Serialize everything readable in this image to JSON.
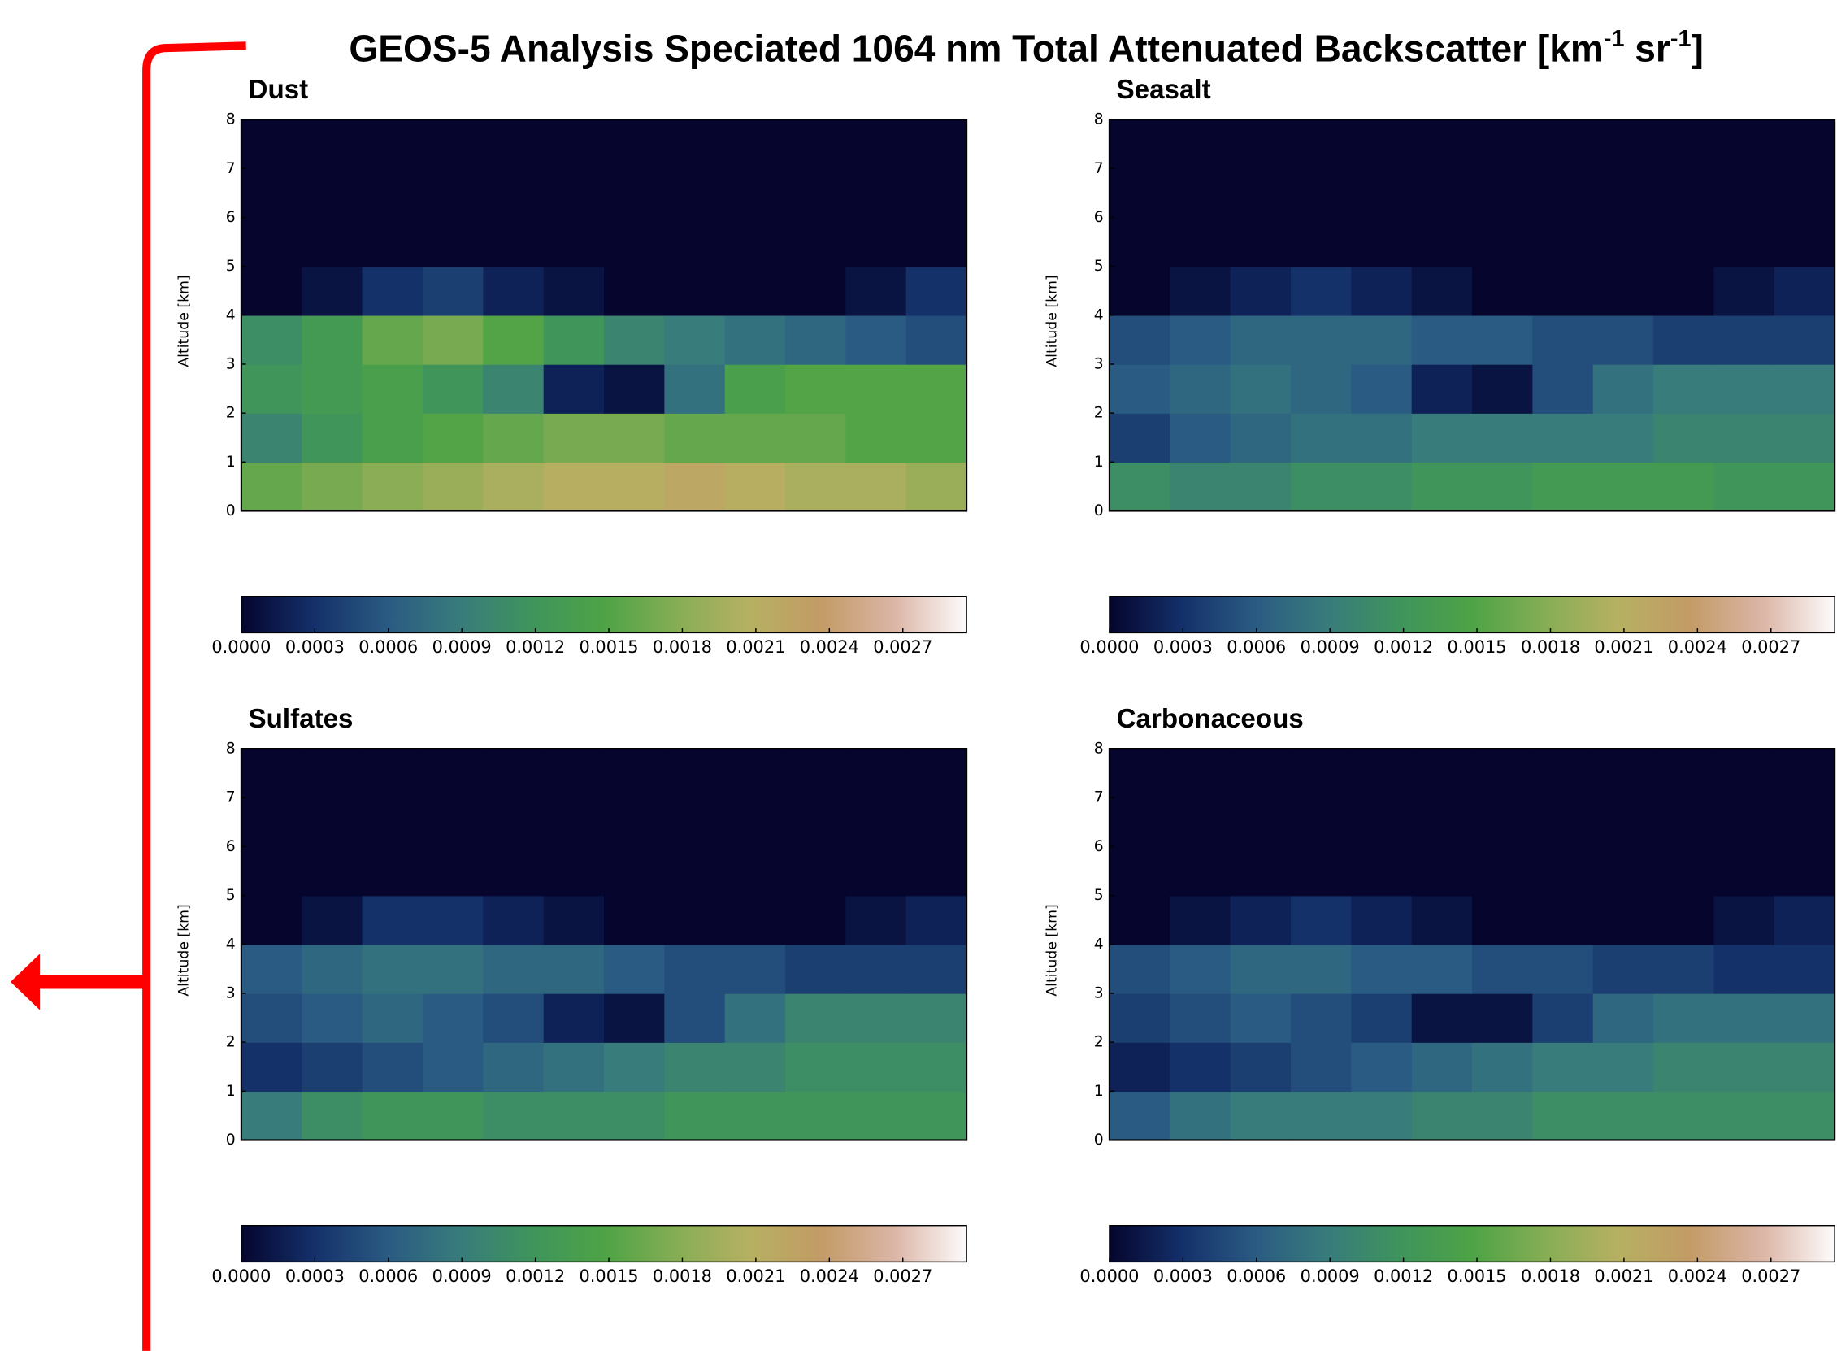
{
  "figure": {
    "title": [
      "GEOS-5 Analysis Speciated 1064 nm Total Attenuated Backscatter [km",
      "-1",
      " sr",
      "-1",
      "]"
    ]
  },
  "chart_data": [
    {
      "type": "heatmap",
      "title": "Dust",
      "ylabel": "Altitude [km]",
      "ylim": [
        0,
        8
      ],
      "yticks": [
        0,
        1,
        2,
        3,
        4,
        5,
        6,
        7,
        8
      ],
      "z": [
        [
          0.0016,
          0.0017,
          0.0018,
          0.0019,
          0.002,
          0.0021,
          0.0021,
          0.0022,
          0.0021,
          0.002,
          0.002,
          0.0019
        ],
        [
          0.001,
          0.0012,
          0.0014,
          0.0015,
          0.0016,
          0.0017,
          0.0017,
          0.0016,
          0.0016,
          0.0016,
          0.0015,
          0.0015
        ],
        [
          0.0012,
          0.0013,
          0.0014,
          0.0012,
          0.001,
          0.0002,
          0.0001,
          0.0008,
          0.0014,
          0.0015,
          0.0015,
          0.0015
        ],
        [
          0.0011,
          0.0013,
          0.0016,
          0.0017,
          0.0015,
          0.0012,
          0.001,
          0.0009,
          0.0008,
          0.0007,
          0.0006,
          0.0005
        ],
        [
          0,
          0.0001,
          0.0003,
          0.0004,
          0.0002,
          0.0001,
          0,
          0,
          0,
          0,
          0.0001,
          0.0003
        ],
        [
          0,
          0,
          0,
          0,
          0,
          0,
          0,
          0,
          0,
          0,
          0,
          0
        ],
        [
          0,
          0,
          0,
          0,
          0,
          0,
          0,
          0,
          0,
          0,
          0,
          0
        ],
        [
          0,
          0,
          0,
          0,
          0,
          0,
          0,
          0,
          0,
          0,
          0,
          0
        ]
      ],
      "colorbar": {
        "clim": [
          0,
          0.00296
        ],
        "colormap": [
          "#05052e",
          "#14306a",
          "#2a5a82",
          "#387b7c",
          "#3f945c",
          "#4ea346",
          "#86ad55",
          "#b6b062",
          "#c39b66",
          "#dbb5a6",
          "#fdfbfb"
        ],
        "ticks": [
          {
            "value": 0,
            "label": "0.0000"
          },
          {
            "value": 0.0003,
            "label": "0.0003"
          },
          {
            "value": 0.0006,
            "label": "0.0006"
          },
          {
            "value": 0.0009,
            "label": "0.0009"
          },
          {
            "value": 0.0012,
            "label": "0.0012"
          },
          {
            "value": 0.0015,
            "label": "0.0015"
          },
          {
            "value": 0.0018,
            "label": "0.0018"
          },
          {
            "value": 0.0021,
            "label": "0.0021"
          },
          {
            "value": 0.0024,
            "label": "0.0024"
          },
          {
            "value": 0.0027,
            "label": "0.0027"
          }
        ]
      }
    },
    {
      "type": "heatmap",
      "title": "Seasalt",
      "ylabel": "Altitude [km]",
      "ylim": [
        0,
        8
      ],
      "yticks": [
        0,
        1,
        2,
        3,
        4,
        5,
        6,
        7,
        8
      ],
      "z": [
        [
          0.0011,
          0.001,
          0.001,
          0.0011,
          0.0011,
          0.0012,
          0.0012,
          0.0013,
          0.0013,
          0.0013,
          0.0012,
          0.0012
        ],
        [
          0.0004,
          0.0006,
          0.0007,
          0.0008,
          0.0008,
          0.0009,
          0.0009,
          0.0009,
          0.0009,
          0.001,
          0.001,
          0.001
        ],
        [
          0.0006,
          0.0007,
          0.0008,
          0.0007,
          0.0006,
          0.0002,
          0.0001,
          0.0005,
          0.0008,
          0.0009,
          0.0009,
          0.0009
        ],
        [
          0.0005,
          0.0006,
          0.0007,
          0.0007,
          0.0007,
          0.0006,
          0.0006,
          0.0005,
          0.0005,
          0.0004,
          0.0004,
          0.0004
        ],
        [
          0,
          0.0001,
          0.0002,
          0.0003,
          0.0002,
          0.0001,
          0,
          0,
          0,
          0,
          0.0001,
          0.0002
        ],
        [
          0,
          0,
          0,
          0,
          0,
          0,
          0,
          0,
          0,
          0,
          0,
          0
        ],
        [
          0,
          0,
          0,
          0,
          0,
          0,
          0,
          0,
          0,
          0,
          0,
          0
        ],
        [
          0,
          0,
          0,
          0,
          0,
          0,
          0,
          0,
          0,
          0,
          0,
          0
        ]
      ],
      "colorbar": {
        "clim": [
          0,
          0.00296
        ],
        "colormap": [
          "#05052e",
          "#14306a",
          "#2a5a82",
          "#387b7c",
          "#3f945c",
          "#4ea346",
          "#86ad55",
          "#b6b062",
          "#c39b66",
          "#dbb5a6",
          "#fdfbfb"
        ],
        "ticks": [
          {
            "value": 0,
            "label": "0.0000"
          },
          {
            "value": 0.0003,
            "label": "0.0003"
          },
          {
            "value": 0.0006,
            "label": "0.0006"
          },
          {
            "value": 0.0009,
            "label": "0.0009"
          },
          {
            "value": 0.0012,
            "label": "0.0012"
          },
          {
            "value": 0.0015,
            "label": "0.0015"
          },
          {
            "value": 0.0018,
            "label": "0.0018"
          },
          {
            "value": 0.0021,
            "label": "0.0021"
          },
          {
            "value": 0.0024,
            "label": "0.0024"
          },
          {
            "value": 0.0027,
            "label": "0.0027"
          }
        ]
      }
    },
    {
      "type": "heatmap",
      "title": "Sulfates",
      "ylabel": "Altitude [km]",
      "ylim": [
        0,
        8
      ],
      "yticks": [
        0,
        1,
        2,
        3,
        4,
        5,
        6,
        7,
        8
      ],
      "z": [
        [
          0.0009,
          0.0011,
          0.0012,
          0.0012,
          0.0011,
          0.0011,
          0.0011,
          0.0012,
          0.0012,
          0.0012,
          0.0012,
          0.0012
        ],
        [
          0.0003,
          0.0004,
          0.0005,
          0.0006,
          0.0007,
          0.0008,
          0.0009,
          0.001,
          0.001,
          0.0011,
          0.0011,
          0.0011
        ],
        [
          0.0005,
          0.0006,
          0.0007,
          0.0006,
          0.0005,
          0.0002,
          0.0001,
          0.0005,
          0.0008,
          0.001,
          0.001,
          0.001
        ],
        [
          0.0006,
          0.0007,
          0.0008,
          0.0008,
          0.0007,
          0.0007,
          0.0006,
          0.0005,
          0.0005,
          0.0004,
          0.0004,
          0.0004
        ],
        [
          0,
          0.0001,
          0.0003,
          0.0003,
          0.0002,
          0.0001,
          0,
          0,
          0,
          0,
          0.0001,
          0.0002
        ],
        [
          0,
          0,
          0,
          0,
          0,
          0,
          0,
          0,
          0,
          0,
          0,
          0
        ],
        [
          0,
          0,
          0,
          0,
          0,
          0,
          0,
          0,
          0,
          0,
          0,
          0
        ],
        [
          0,
          0,
          0,
          0,
          0,
          0,
          0,
          0,
          0,
          0,
          0,
          0
        ]
      ],
      "colorbar": {
        "clim": [
          0,
          0.00296
        ],
        "colormap": [
          "#05052e",
          "#14306a",
          "#2a5a82",
          "#387b7c",
          "#3f945c",
          "#4ea346",
          "#86ad55",
          "#b6b062",
          "#c39b66",
          "#dbb5a6",
          "#fdfbfb"
        ],
        "ticks": [
          {
            "value": 0,
            "label": "0.0000"
          },
          {
            "value": 0.0003,
            "label": "0.0003"
          },
          {
            "value": 0.0006,
            "label": "0.0006"
          },
          {
            "value": 0.0009,
            "label": "0.0009"
          },
          {
            "value": 0.0012,
            "label": "0.0012"
          },
          {
            "value": 0.0015,
            "label": "0.0015"
          },
          {
            "value": 0.0018,
            "label": "0.0018"
          },
          {
            "value": 0.0021,
            "label": "0.0021"
          },
          {
            "value": 0.0024,
            "label": "0.0024"
          },
          {
            "value": 0.0027,
            "label": "0.0027"
          }
        ]
      }
    },
    {
      "type": "heatmap",
      "title": "Carbonaceous",
      "ylabel": "Altitude [km]",
      "ylim": [
        0,
        8
      ],
      "yticks": [
        0,
        1,
        2,
        3,
        4,
        5,
        6,
        7,
        8
      ],
      "z": [
        [
          0.0006,
          0.0008,
          0.0009,
          0.0009,
          0.0009,
          0.001,
          0.001,
          0.0011,
          0.0011,
          0.0011,
          0.0011,
          0.0011
        ],
        [
          0.0002,
          0.0003,
          0.0004,
          0.0005,
          0.0006,
          0.0007,
          0.0008,
          0.0009,
          0.0009,
          0.001,
          0.001,
          0.001
        ],
        [
          0.0004,
          0.0005,
          0.0006,
          0.0005,
          0.0004,
          0.0001,
          0.0001,
          0.0004,
          0.0007,
          0.0008,
          0.0008,
          0.0008
        ],
        [
          0.0005,
          0.0006,
          0.0007,
          0.0007,
          0.0006,
          0.0006,
          0.0005,
          0.0005,
          0.0004,
          0.0004,
          0.0003,
          0.0003
        ],
        [
          0,
          0.0001,
          0.0002,
          0.0003,
          0.0002,
          0.0001,
          0,
          0,
          0,
          0,
          0.0001,
          0.0002
        ],
        [
          0,
          0,
          0,
          0,
          0,
          0,
          0,
          0,
          0,
          0,
          0,
          0
        ],
        [
          0,
          0,
          0,
          0,
          0,
          0,
          0,
          0,
          0,
          0,
          0,
          0
        ],
        [
          0,
          0,
          0,
          0,
          0,
          0,
          0,
          0,
          0,
          0,
          0,
          0
        ]
      ],
      "colorbar": {
        "clim": [
          0,
          0.00296
        ],
        "colormap": [
          "#05052e",
          "#14306a",
          "#2a5a82",
          "#387b7c",
          "#3f945c",
          "#4ea346",
          "#86ad55",
          "#b6b062",
          "#c39b66",
          "#dbb5a6",
          "#fdfbfb"
        ],
        "ticks": [
          {
            "value": 0,
            "label": "0.0000"
          },
          {
            "value": 0.0003,
            "label": "0.0003"
          },
          {
            "value": 0.0006,
            "label": "0.0006"
          },
          {
            "value": 0.0009,
            "label": "0.0009"
          },
          {
            "value": 0.0012,
            "label": "0.0012"
          },
          {
            "value": 0.0015,
            "label": "0.0015"
          },
          {
            "value": 0.0018,
            "label": "0.0018"
          },
          {
            "value": 0.0021,
            "label": "0.0021"
          },
          {
            "value": 0.0024,
            "label": "0.0024"
          },
          {
            "value": 0.0027,
            "label": "0.0027"
          }
        ]
      }
    }
  ]
}
